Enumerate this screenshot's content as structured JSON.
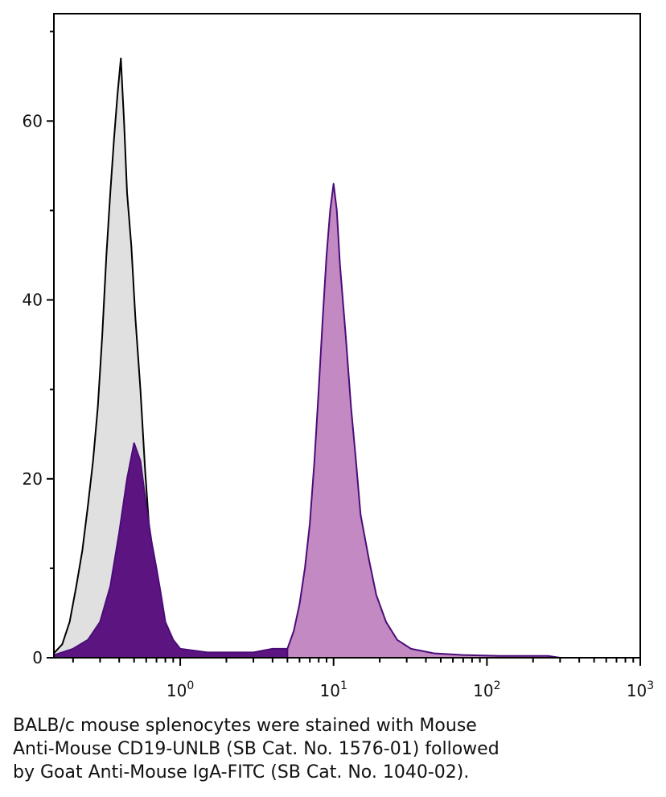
{
  "chart_data": {
    "type": "area",
    "x_scale": "log",
    "xlim": [
      0.15,
      1000
    ],
    "ylim": [
      0,
      72
    ],
    "grid": false,
    "legend": "none",
    "x_ticks": [
      {
        "value": 1,
        "base": "10",
        "exp": "0"
      },
      {
        "value": 10,
        "base": "10",
        "exp": "1"
      },
      {
        "value": 100,
        "base": "10",
        "exp": "2"
      },
      {
        "value": 1000,
        "base": "10",
        "exp": "3"
      }
    ],
    "y_ticks": [
      0,
      20,
      40,
      60
    ],
    "series": [
      {
        "fill": "#e0e0e0",
        "stroke": "#000000",
        "points": [
          [
            0.15,
            0.5
          ],
          [
            0.17,
            1.5
          ],
          [
            0.19,
            4
          ],
          [
            0.21,
            8
          ],
          [
            0.23,
            12
          ],
          [
            0.25,
            17
          ],
          [
            0.27,
            22
          ],
          [
            0.29,
            28
          ],
          [
            0.31,
            36
          ],
          [
            0.33,
            45
          ],
          [
            0.35,
            52
          ],
          [
            0.37,
            58
          ],
          [
            0.39,
            63
          ],
          [
            0.41,
            67
          ],
          [
            0.43,
            60
          ],
          [
            0.45,
            52
          ],
          [
            0.48,
            46
          ],
          [
            0.51,
            38
          ],
          [
            0.55,
            30
          ],
          [
            0.59,
            21
          ],
          [
            0.63,
            14
          ],
          [
            0.68,
            8
          ],
          [
            0.73,
            4
          ],
          [
            0.8,
            1.5
          ],
          [
            0.9,
            0.5
          ],
          [
            1.1,
            0
          ]
        ]
      },
      {
        "fill": "#5c1580",
        "stroke": "#4b0c78",
        "points": [
          [
            0.15,
            0.3
          ],
          [
            0.2,
            1
          ],
          [
            0.25,
            2
          ],
          [
            0.3,
            4
          ],
          [
            0.35,
            8
          ],
          [
            0.4,
            14
          ],
          [
            0.45,
            20
          ],
          [
            0.5,
            24
          ],
          [
            0.55,
            22
          ],
          [
            0.6,
            17
          ],
          [
            0.65,
            13
          ],
          [
            0.7,
            10
          ],
          [
            0.75,
            7
          ],
          [
            0.8,
            4
          ],
          [
            0.9,
            2
          ],
          [
            1.0,
            1
          ],
          [
            1.5,
            0.6
          ],
          [
            2.0,
            0.6
          ],
          [
            3.0,
            0.6
          ],
          [
            4.0,
            1
          ],
          [
            5.0,
            1
          ]
        ]
      },
      {
        "fill": "#c389c3",
        "stroke": "#4b0c78",
        "points": [
          [
            5.0,
            1
          ],
          [
            5.5,
            3
          ],
          [
            6.0,
            6
          ],
          [
            6.5,
            10
          ],
          [
            7.0,
            15
          ],
          [
            7.5,
            22
          ],
          [
            8.0,
            30
          ],
          [
            8.5,
            38
          ],
          [
            9.0,
            45
          ],
          [
            9.5,
            50
          ],
          [
            10.0,
            53
          ],
          [
            10.5,
            50
          ],
          [
            11.0,
            44
          ],
          [
            12.0,
            36
          ],
          [
            13.0,
            28
          ],
          [
            14.0,
            22
          ],
          [
            15.0,
            16
          ],
          [
            17.0,
            11
          ],
          [
            19.0,
            7
          ],
          [
            22.0,
            4
          ],
          [
            26.0,
            2
          ],
          [
            32.0,
            1
          ],
          [
            45.0,
            0.5
          ],
          [
            70.0,
            0.3
          ],
          [
            120.0,
            0.2
          ],
          [
            250.0,
            0.2
          ],
          [
            300.0,
            0
          ]
        ]
      }
    ]
  },
  "caption": {
    "line1": "BALB/c mouse splenocytes were stained with Mouse",
    "line2": "Anti-Mouse CD19-UNLB (SB Cat. No. 1576-01) followed",
    "line3": "by Goat Anti-Mouse IgA-FITC (SB Cat. No. 1040-02)."
  }
}
